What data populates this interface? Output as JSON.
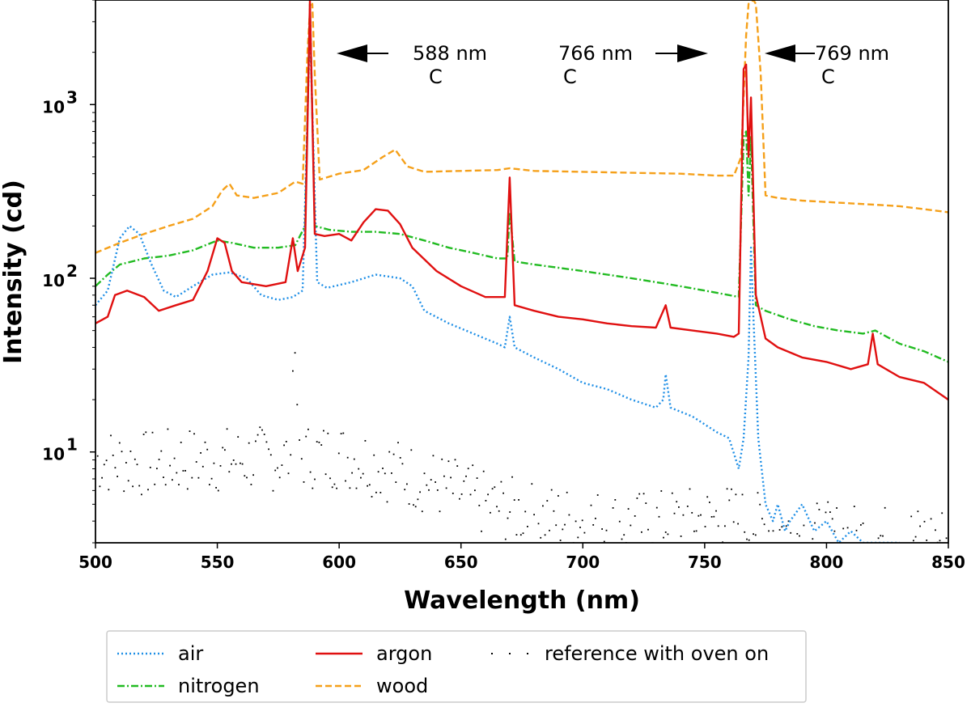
{
  "chart_data": {
    "type": "line",
    "xlabel": "Wavelength (nm)",
    "ylabel": "Intensity (cd)",
    "xlim": [
      500,
      850
    ],
    "ylim": [
      3,
      4000
    ],
    "yscale": "log",
    "x_ticks": [
      500,
      550,
      600,
      650,
      700,
      750,
      800,
      850
    ],
    "y_ticks": [
      {
        "value": 10,
        "base": "10",
        "exp": "1"
      },
      {
        "value": 100,
        "base": "10",
        "exp": "2"
      },
      {
        "value": 1000,
        "base": "10",
        "exp": "3"
      }
    ],
    "grid": false,
    "legend_position": "below plot",
    "annotations": [
      {
        "text": "588 nm",
        "sub": "C",
        "x": 588,
        "arrow": "left"
      },
      {
        "text": "766 nm",
        "sub": "C",
        "x": 766,
        "arrow": "right"
      },
      {
        "text": "769 nm",
        "sub": "C",
        "x": 769,
        "arrow": "left"
      }
    ],
    "series": [
      {
        "name": "air",
        "color": "#1f8fe6",
        "style": "dotted",
        "points": [
          [
            500,
            70
          ],
          [
            505,
            85
          ],
          [
            510,
            170
          ],
          [
            514,
            200
          ],
          [
            518,
            180
          ],
          [
            523,
            120
          ],
          [
            528,
            85
          ],
          [
            533,
            78
          ],
          [
            540,
            90
          ],
          [
            548,
            105
          ],
          [
            555,
            108
          ],
          [
            562,
            100
          ],
          [
            568,
            80
          ],
          [
            575,
            75
          ],
          [
            581,
            78
          ],
          [
            585,
            85
          ],
          [
            588,
            2800
          ],
          [
            591,
            95
          ],
          [
            595,
            88
          ],
          [
            605,
            95
          ],
          [
            615,
            105
          ],
          [
            625,
            100
          ],
          [
            630,
            90
          ],
          [
            635,
            65
          ],
          [
            645,
            55
          ],
          [
            655,
            48
          ],
          [
            665,
            42
          ],
          [
            668,
            40
          ],
          [
            670,
            60
          ],
          [
            672,
            40
          ],
          [
            680,
            35
          ],
          [
            690,
            30
          ],
          [
            700,
            25
          ],
          [
            710,
            23
          ],
          [
            720,
            20
          ],
          [
            730,
            18
          ],
          [
            733,
            20
          ],
          [
            734,
            28
          ],
          [
            736,
            18
          ],
          [
            745,
            16
          ],
          [
            755,
            13
          ],
          [
            760,
            12
          ],
          [
            764,
            8
          ],
          [
            766,
            12
          ],
          [
            768,
            35
          ],
          [
            769,
            150
          ],
          [
            770,
            60
          ],
          [
            772,
            12
          ],
          [
            775,
            5
          ],
          [
            778,
            4
          ],
          [
            780,
            5
          ],
          [
            783,
            3.5
          ],
          [
            785,
            4
          ],
          [
            790,
            5
          ],
          [
            795,
            3.5
          ],
          [
            800,
            4
          ],
          [
            805,
            3
          ],
          [
            810,
            3.5
          ],
          [
            815,
            3
          ],
          [
            820,
            3
          ],
          [
            830,
            3
          ]
        ]
      },
      {
        "name": "nitrogen",
        "color": "#22bb22",
        "style": "dashdot",
        "points": [
          [
            500,
            90
          ],
          [
            505,
            105
          ],
          [
            510,
            120
          ],
          [
            520,
            130
          ],
          [
            530,
            135
          ],
          [
            540,
            145
          ],
          [
            550,
            165
          ],
          [
            556,
            160
          ],
          [
            565,
            150
          ],
          [
            575,
            150
          ],
          [
            582,
            155
          ],
          [
            586,
            200
          ],
          [
            588,
            3800
          ],
          [
            590,
            200
          ],
          [
            596,
            190
          ],
          [
            605,
            185
          ],
          [
            615,
            185
          ],
          [
            625,
            180
          ],
          [
            635,
            165
          ],
          [
            645,
            150
          ],
          [
            655,
            140
          ],
          [
            665,
            130
          ],
          [
            669,
            130
          ],
          [
            670,
            240
          ],
          [
            672,
            125
          ],
          [
            680,
            120
          ],
          [
            690,
            115
          ],
          [
            700,
            110
          ],
          [
            710,
            105
          ],
          [
            720,
            100
          ],
          [
            730,
            95
          ],
          [
            740,
            90
          ],
          [
            750,
            85
          ],
          [
            760,
            80
          ],
          [
            764,
            78
          ],
          [
            766,
            650
          ],
          [
            767,
            700
          ],
          [
            768,
            300
          ],
          [
            769,
            650
          ],
          [
            771,
            70
          ],
          [
            775,
            65
          ],
          [
            785,
            58
          ],
          [
            795,
            53
          ],
          [
            805,
            50
          ],
          [
            815,
            48
          ],
          [
            820,
            50
          ],
          [
            830,
            42
          ],
          [
            840,
            38
          ],
          [
            850,
            33
          ]
        ]
      },
      {
        "name": "argon",
        "color": "#e01010",
        "style": "solid",
        "points": [
          [
            500,
            55
          ],
          [
            505,
            60
          ],
          [
            508,
            80
          ],
          [
            513,
            85
          ],
          [
            520,
            78
          ],
          [
            526,
            65
          ],
          [
            533,
            70
          ],
          [
            540,
            75
          ],
          [
            546,
            110
          ],
          [
            550,
            170
          ],
          [
            553,
            160
          ],
          [
            556,
            110
          ],
          [
            560,
            95
          ],
          [
            570,
            90
          ],
          [
            578,
            95
          ],
          [
            581,
            170
          ],
          [
            583,
            110
          ],
          [
            586,
            150
          ],
          [
            588,
            4000
          ],
          [
            590,
            180
          ],
          [
            594,
            175
          ],
          [
            600,
            180
          ],
          [
            605,
            165
          ],
          [
            610,
            210
          ],
          [
            615,
            250
          ],
          [
            620,
            245
          ],
          [
            625,
            205
          ],
          [
            630,
            150
          ],
          [
            640,
            110
          ],
          [
            650,
            90
          ],
          [
            660,
            78
          ],
          [
            668,
            78
          ],
          [
            670,
            380
          ],
          [
            672,
            70
          ],
          [
            680,
            65
          ],
          [
            690,
            60
          ],
          [
            700,
            58
          ],
          [
            710,
            55
          ],
          [
            720,
            53
          ],
          [
            730,
            52
          ],
          [
            734,
            70
          ],
          [
            736,
            52
          ],
          [
            745,
            50
          ],
          [
            755,
            48
          ],
          [
            762,
            46
          ],
          [
            764,
            48
          ],
          [
            766,
            1600
          ],
          [
            767,
            1700
          ],
          [
            768,
            500
          ],
          [
            769,
            1100
          ],
          [
            771,
            80
          ],
          [
            775,
            45
          ],
          [
            780,
            40
          ],
          [
            790,
            35
          ],
          [
            800,
            33
          ],
          [
            810,
            30
          ],
          [
            817,
            32
          ],
          [
            819,
            48
          ],
          [
            821,
            32
          ],
          [
            830,
            27
          ],
          [
            840,
            25
          ],
          [
            850,
            20
          ]
        ]
      },
      {
        "name": "wood",
        "color": "#f5a01a",
        "style": "dashed",
        "points": [
          [
            500,
            140
          ],
          [
            510,
            160
          ],
          [
            520,
            180
          ],
          [
            530,
            200
          ],
          [
            540,
            220
          ],
          [
            548,
            260
          ],
          [
            552,
            320
          ],
          [
            555,
            350
          ],
          [
            558,
            300
          ],
          [
            565,
            290
          ],
          [
            575,
            310
          ],
          [
            582,
            360
          ],
          [
            585,
            350
          ],
          [
            587,
            2000
          ],
          [
            588,
            3500
          ],
          [
            589,
            3800
          ],
          [
            590,
            1500
          ],
          [
            592,
            370
          ],
          [
            600,
            400
          ],
          [
            610,
            420
          ],
          [
            618,
            500
          ],
          [
            623,
            550
          ],
          [
            628,
            440
          ],
          [
            635,
            410
          ],
          [
            650,
            415
          ],
          [
            665,
            420
          ],
          [
            670,
            430
          ],
          [
            680,
            415
          ],
          [
            700,
            410
          ],
          [
            720,
            405
          ],
          [
            740,
            400
          ],
          [
            755,
            390
          ],
          [
            762,
            390
          ],
          [
            765,
            500
          ],
          [
            767,
            2500
          ],
          [
            768,
            3800
          ],
          [
            770,
            4000
          ],
          [
            771,
            3800
          ],
          [
            773,
            1500
          ],
          [
            775,
            300
          ],
          [
            780,
            290
          ],
          [
            790,
            280
          ],
          [
            800,
            275
          ],
          [
            810,
            270
          ],
          [
            820,
            265
          ],
          [
            830,
            260
          ],
          [
            840,
            250
          ],
          [
            850,
            240
          ]
        ]
      },
      {
        "name": "reference with oven on",
        "color": "#000000",
        "style": "dots",
        "seed": 7,
        "base_points": [
          [
            500,
            9
          ],
          [
            520,
            8.5
          ],
          [
            540,
            9
          ],
          [
            560,
            9
          ],
          [
            575,
            9.2
          ],
          [
            590,
            9.5
          ],
          [
            600,
            9.5
          ],
          [
            610,
            9
          ],
          [
            620,
            8
          ],
          [
            640,
            6.5
          ],
          [
            660,
            5
          ],
          [
            680,
            4.3
          ],
          [
            700,
            4
          ],
          [
            720,
            3.8
          ],
          [
            740,
            4
          ],
          [
            760,
            4.2
          ],
          [
            780,
            3.5
          ],
          [
            800,
            3.3
          ],
          [
            820,
            3.2
          ],
          [
            850,
            3.2
          ]
        ],
        "peak": [
          [
            580,
            12
          ],
          [
            581,
            30
          ],
          [
            582,
            45
          ],
          [
            583,
            20
          ],
          [
            584,
            12
          ]
        ]
      }
    ]
  }
}
